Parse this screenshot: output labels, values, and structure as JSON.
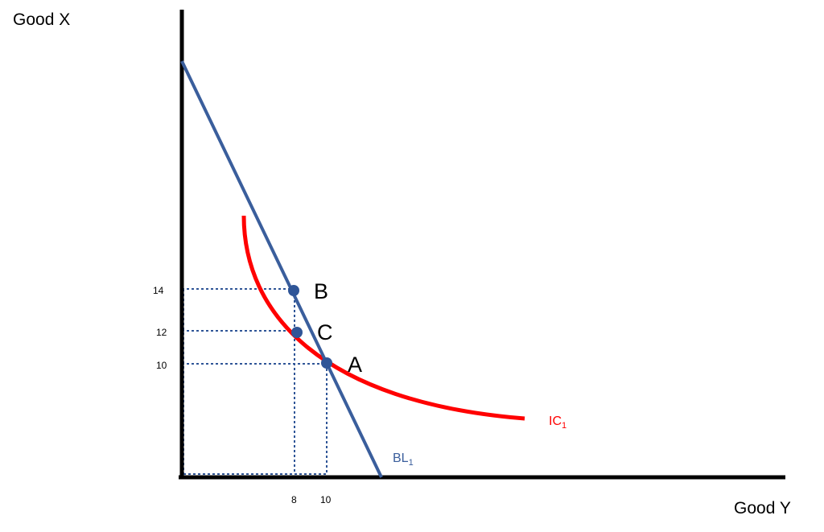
{
  "diagram": {
    "y_axis_title": "Good X",
    "x_axis_title": "Good Y",
    "y_ticks": [
      "14",
      "12",
      "10"
    ],
    "x_ticks": [
      "8",
      "10"
    ],
    "points": [
      {
        "id": "B",
        "label": "B",
        "y_good": 8,
        "x_good": 14
      },
      {
        "id": "C",
        "label": "C",
        "y_good": 8,
        "x_good": 12
      },
      {
        "id": "A",
        "label": "A",
        "y_good": 10,
        "x_good": 10
      }
    ],
    "budget_line": {
      "label": "BL",
      "subscript": "1",
      "color": "#3a5e9c"
    },
    "indifference_curve": {
      "label": "IC",
      "subscript": "1",
      "color": "#ff0000"
    },
    "axis_color": "#000000",
    "guide_color": "#2f5597",
    "point_color": "#2f5597"
  }
}
